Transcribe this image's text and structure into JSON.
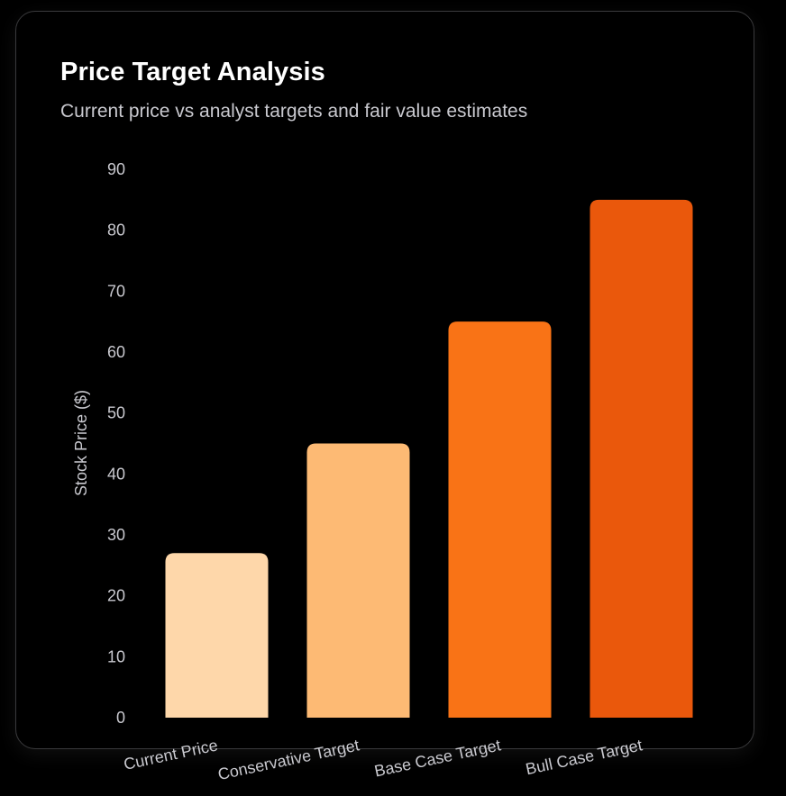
{
  "header": {
    "title": "Price Target Analysis",
    "subtitle": "Current price vs analyst targets and fair value estimates"
  },
  "colors": {
    "background": "#000000",
    "card_border": "#3a3a3c",
    "text_primary": "#ffffff",
    "text_secondary": "#c9c9cf",
    "bars": [
      "#fed7aa",
      "#fdba74",
      "#f97316",
      "#ea580c"
    ]
  },
  "chart_data": {
    "type": "bar",
    "title": "Price Target Analysis",
    "subtitle": "Current price vs analyst targets and fair value estimates",
    "categories": [
      "Current Price",
      "Conservative Target",
      "Base Case Target",
      "Bull Case Target"
    ],
    "values": [
      27,
      45,
      65,
      85
    ],
    "xlabel": "",
    "ylabel": "Stock Price ($)",
    "ylim": [
      0,
      90
    ],
    "yticks": [
      0,
      10,
      20,
      30,
      40,
      50,
      60,
      70,
      80,
      90
    ],
    "grid": false,
    "legend": "none"
  }
}
